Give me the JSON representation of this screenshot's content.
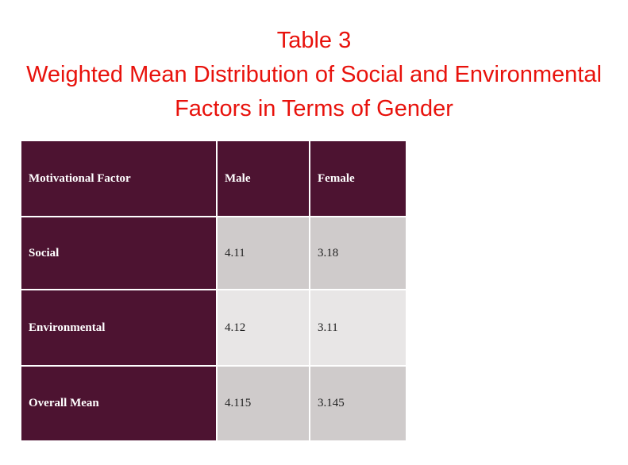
{
  "title": {
    "line1": "Table 3",
    "line2": "Weighted Mean Distribution of Social and Environmental",
    "line3": "Factors in Terms of Gender"
  },
  "table": {
    "headers": [
      "Motivational Factor",
      "Male",
      "Female"
    ],
    "rows": [
      {
        "factor": "Social",
        "male": "4.11",
        "female": "3.18"
      },
      {
        "factor": "Environmental",
        "male": "4.12",
        "female": "3.11"
      },
      {
        "factor": "Overall Mean",
        "male": "4.115",
        "female": "3.145"
      }
    ]
  },
  "colors": {
    "title": "#e8120c",
    "header_bg": "#4d1331",
    "cell_dark": "#cfcbcb",
    "cell_light": "#e8e6e6"
  }
}
